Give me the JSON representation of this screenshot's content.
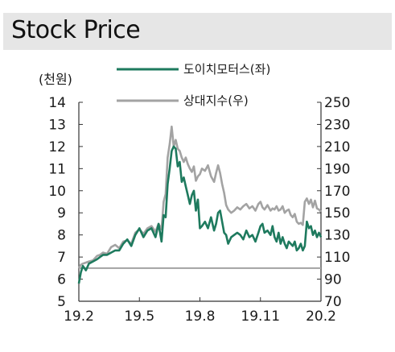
{
  "header": {
    "title": "Stock Price"
  },
  "chart_data": {
    "type": "line",
    "title": "Stock Price",
    "y_left_unit": "(천원)",
    "y_left_lim": [
      5,
      14
    ],
    "y_left_ticks": [
      "5",
      "6",
      "7",
      "8",
      "9",
      "10",
      "11",
      "12",
      "13",
      "14"
    ],
    "y_right_lim": [
      70,
      250
    ],
    "y_right_ticks": [
      "70",
      "90",
      "110",
      "130",
      "150",
      "170",
      "190",
      "210",
      "230",
      "250"
    ],
    "x_lim": [
      0,
      12
    ],
    "x_ticks": [
      {
        "pos": 0,
        "label": "19.2"
      },
      {
        "pos": 3,
        "label": "19.5"
      },
      {
        "pos": 6,
        "label": "19.8"
      },
      {
        "pos": 9,
        "label": "19.11"
      },
      {
        "pos": 12,
        "label": "20.2"
      }
    ],
    "reference_line": {
      "axis": "right",
      "value": 100
    },
    "colors": {
      "stock": "#1e7a5e",
      "relative": "#a3a3a3",
      "axis": "#333333"
    },
    "series": [
      {
        "name": "도이치모터스(좌)",
        "axis": "left",
        "color": "#1e7a5e",
        "x": [
          0,
          0.1,
          0.2,
          0.35,
          0.5,
          0.7,
          0.9,
          1.05,
          1.2,
          1.4,
          1.6,
          1.8,
          2.0,
          2.2,
          2.4,
          2.6,
          2.8,
          3.0,
          3.2,
          3.4,
          3.6,
          3.8,
          3.95,
          4.1,
          4.2,
          4.3,
          4.4,
          4.5,
          4.6,
          4.7,
          4.8,
          4.9,
          5.0,
          5.1,
          5.2,
          5.3,
          5.4,
          5.5,
          5.6,
          5.7,
          5.8,
          5.9,
          6.0,
          6.1,
          6.25,
          6.4,
          6.55,
          6.7,
          6.8,
          6.9,
          7.0,
          7.1,
          7.2,
          7.3,
          7.4,
          7.55,
          7.7,
          7.85,
          8.0,
          8.15,
          8.3,
          8.45,
          8.6,
          8.75,
          8.9,
          9.0,
          9.1,
          9.2,
          9.35,
          9.5,
          9.6,
          9.7,
          9.8,
          9.9,
          10.0,
          10.1,
          10.2,
          10.3,
          10.4,
          10.5,
          10.6,
          10.7,
          10.8,
          10.9,
          11.0,
          11.1,
          11.2,
          11.3,
          11.4,
          11.5,
          11.6,
          11.7,
          11.8,
          11.9,
          12.0
        ],
        "values": [
          5.8,
          6.3,
          6.6,
          6.4,
          6.7,
          6.8,
          6.9,
          7.0,
          7.1,
          7.1,
          7.2,
          7.3,
          7.3,
          7.6,
          7.8,
          7.5,
          8.0,
          8.3,
          7.9,
          8.2,
          8.3,
          7.9,
          8.5,
          7.7,
          8.9,
          8.8,
          10.3,
          11.0,
          11.8,
          12.0,
          11.9,
          11.1,
          11.3,
          10.4,
          10.6,
          10.2,
          9.8,
          9.4,
          9.8,
          10.0,
          9.1,
          9.6,
          8.3,
          8.4,
          8.6,
          8.3,
          8.8,
          8.2,
          8.5,
          9.0,
          9.1,
          8.6,
          8.1,
          8.0,
          7.6,
          7.9,
          8.0,
          8.1,
          8.0,
          7.8,
          8.2,
          7.9,
          8.0,
          7.7,
          8.1,
          8.4,
          8.5,
          8.1,
          8.2,
          8.0,
          8.4,
          7.9,
          7.7,
          8.1,
          7.6,
          7.9,
          7.6,
          7.4,
          7.7,
          7.6,
          7.5,
          7.7,
          7.3,
          7.4,
          7.6,
          7.3,
          7.5,
          8.6,
          8.3,
          8.4,
          8.0,
          8.2,
          7.9,
          8.1,
          7.9
        ]
      },
      {
        "name": "상대지수(우)",
        "axis": "right",
        "color": "#a3a3a3",
        "x": [
          0,
          0.1,
          0.2,
          0.35,
          0.5,
          0.7,
          0.9,
          1.05,
          1.2,
          1.4,
          1.6,
          1.8,
          2.0,
          2.2,
          2.4,
          2.6,
          2.8,
          3.0,
          3.2,
          3.4,
          3.6,
          3.8,
          3.95,
          4.1,
          4.2,
          4.3,
          4.4,
          4.5,
          4.6,
          4.7,
          4.8,
          4.9,
          5.0,
          5.1,
          5.2,
          5.3,
          5.4,
          5.5,
          5.6,
          5.7,
          5.8,
          5.9,
          6.0,
          6.1,
          6.25,
          6.4,
          6.55,
          6.7,
          6.8,
          6.9,
          7.0,
          7.1,
          7.2,
          7.3,
          7.4,
          7.55,
          7.7,
          7.85,
          8.0,
          8.15,
          8.3,
          8.45,
          8.6,
          8.75,
          8.9,
          9.0,
          9.1,
          9.2,
          9.35,
          9.5,
          9.6,
          9.7,
          9.8,
          9.9,
          10.0,
          10.1,
          10.2,
          10.3,
          10.4,
          10.5,
          10.6,
          10.7,
          10.8,
          10.9,
          11.0,
          11.1,
          11.2,
          11.3,
          11.4,
          11.5,
          11.6,
          11.7,
          11.8,
          11.9,
          12.0
        ],
        "values": [
          100,
          103,
          104,
          105,
          106,
          107,
          111,
          112,
          114,
          113,
          119,
          121,
          118,
          124,
          125,
          122,
          132,
          135,
          131,
          136,
          138,
          133,
          140,
          135,
          160,
          167,
          200,
          212,
          228,
          210,
          216,
          208,
          206,
          200,
          196,
          200,
          194,
          190,
          187,
          192,
          179,
          183,
          185,
          190,
          188,
          193,
          183,
          178,
          186,
          193,
          186,
          176,
          168,
          157,
          153,
          150,
          152,
          155,
          153,
          156,
          158,
          154,
          156,
          152,
          158,
          160,
          155,
          153,
          157,
          152,
          154,
          153,
          156,
          152,
          153,
          156,
          150,
          152,
          153,
          148,
          146,
          149,
          142,
          140,
          141,
          139,
          160,
          163,
          158,
          162,
          155,
          161,
          154,
          153,
          151
        ]
      }
    ]
  }
}
